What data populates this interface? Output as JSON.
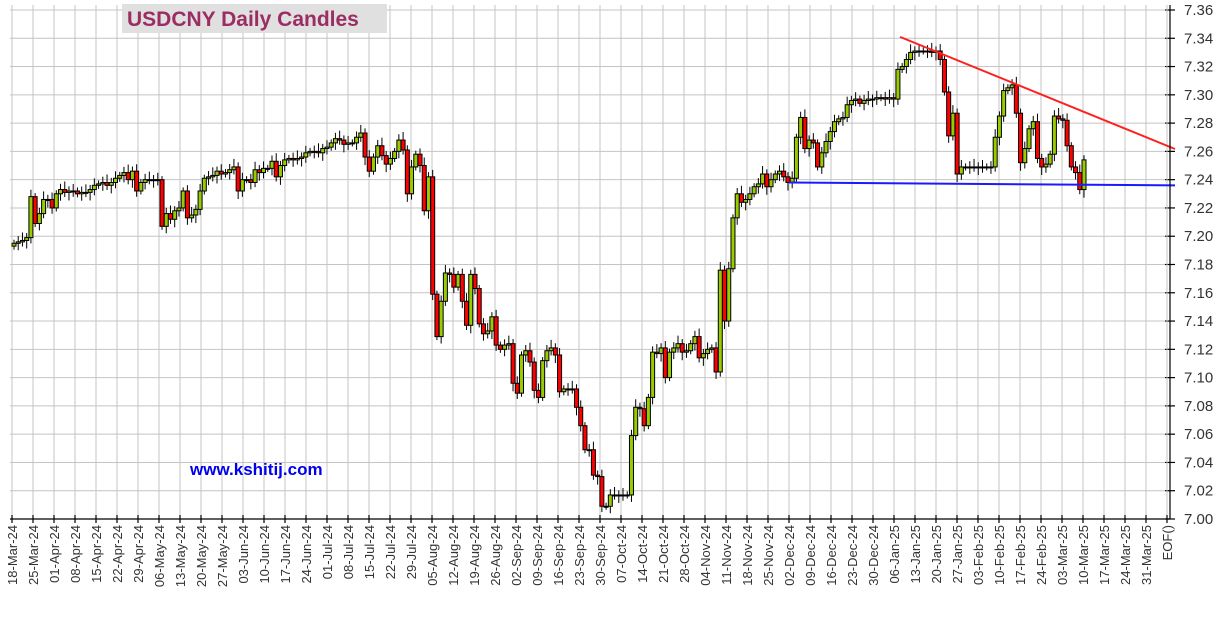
{
  "chart_data": {
    "type": "candlestick",
    "title": "USDCNY Daily Candles",
    "watermark": "www.kshitij.com",
    "ylim": [
      7.0,
      7.36
    ],
    "y_ticks": [
      "7.00",
      "7.02",
      "7.04",
      "7.06",
      "7.08",
      "7.10",
      "7.12",
      "7.14",
      "7.16",
      "7.18",
      "7.20",
      "7.22",
      "7.24",
      "7.26",
      "7.28",
      "7.30",
      "7.32",
      "7.34",
      "7.36"
    ],
    "x_ticks": [
      "18-Mar-24",
      "25-Mar-24",
      "01-Apr-24",
      "08-Apr-24",
      "15-Apr-24",
      "22-Apr-24",
      "29-Apr-24",
      "06-May-24",
      "13-May-24",
      "20-May-24",
      "27-May-24",
      "03-Jun-24",
      "10-Jun-24",
      "17-Jun-24",
      "24-Jun-24",
      "01-Jul-24",
      "08-Jul-24",
      "15-Jul-24",
      "22-Jul-24",
      "29-Jul-24",
      "05-Aug-24",
      "12-Aug-24",
      "19-Aug-24",
      "26-Aug-24",
      "02-Sep-24",
      "09-Sep-24",
      "16-Sep-24",
      "23-Sep-24",
      "30-Sep-24",
      "07-Oct-24",
      "14-Oct-24",
      "21-Oct-24",
      "28-Oct-24",
      "04-Nov-24",
      "11-Nov-24",
      "18-Nov-24",
      "25-Nov-24",
      "02-Dec-24",
      "09-Dec-24",
      "16-Dec-24",
      "23-Dec-24",
      "30-Dec-24",
      "06-Jan-25",
      "13-Jan-25",
      "20-Jan-25",
      "27-Jan-25",
      "03-Feb-25",
      "10-Feb-25",
      "17-Feb-25",
      "24-Feb-25",
      "03-Mar-25",
      "10-Mar-25",
      "17-Mar-25",
      "24-Mar-25",
      "31-Mar-25",
      "EOF()"
    ],
    "grid": true,
    "y_axis_side": "right",
    "first_open": 7.193,
    "closes_by_week": [
      {
        "week": "18-Mar-24",
        "closes": [
          7.195,
          7.196,
          7.197,
          7.199,
          7.228
        ]
      },
      {
        "week": "25-Mar-24",
        "closes": [
          7.209,
          7.216,
          7.226,
          7.226,
          7.22
        ]
      },
      {
        "week": "01-Apr-24",
        "closes": [
          7.23,
          7.233,
          7.231,
          7.232,
          7.232
        ]
      },
      {
        "week": "08-Apr-24",
        "closes": [
          7.23,
          7.231,
          7.231,
          7.233,
          7.236
        ]
      },
      {
        "week": "15-Apr-24",
        "closes": [
          7.237,
          7.238,
          7.236,
          7.238,
          7.241
        ]
      },
      {
        "week": "22-Apr-24",
        "closes": [
          7.243,
          7.245,
          7.24,
          7.246,
          7.232
        ]
      },
      {
        "week": "29-Apr-24",
        "closes": [
          7.238,
          7.24,
          7.24,
          7.24,
          7.24
        ]
      },
      {
        "week": "06-May-24",
        "closes": [
          7.207,
          7.216,
          7.212,
          7.218,
          7.22
        ]
      },
      {
        "week": "13-May-24",
        "closes": [
          7.232,
          7.213,
          7.215,
          7.219,
          7.232
        ]
      },
      {
        "week": "20-May-24",
        "closes": [
          7.241,
          7.242,
          7.243,
          7.246,
          7.244
        ]
      },
      {
        "week": "27-May-24",
        "closes": [
          7.245,
          7.247,
          7.249,
          7.232,
          7.24
        ]
      },
      {
        "week": "03-Jun-24",
        "closes": [
          7.24,
          7.238,
          7.247,
          7.245,
          7.248
        ]
      },
      {
        "week": "10-Jun-24",
        "closes": [
          7.248,
          7.253,
          7.242,
          7.25,
          7.254
        ]
      },
      {
        "week": "17-Jun-24",
        "closes": [
          7.255,
          7.254,
          7.255,
          7.256,
          7.259
        ]
      },
      {
        "week": "24-Jun-24",
        "closes": [
          7.26,
          7.26,
          7.259,
          7.262,
          7.263
        ]
      },
      {
        "week": "01-Jul-24",
        "closes": [
          7.266,
          7.269,
          7.268,
          7.265,
          7.266
        ]
      },
      {
        "week": "08-Jul-24",
        "closes": [
          7.266,
          7.27,
          7.273,
          7.256,
          7.246
        ]
      },
      {
        "week": "15-Jul-24",
        "closes": [
          7.256,
          7.264,
          7.257,
          7.251,
          7.255
        ]
      },
      {
        "week": "22-Jul-24",
        "closes": [
          7.26,
          7.268,
          7.261,
          7.23,
          7.249
        ]
      },
      {
        "week": "29-Jul-24",
        "closes": [
          7.258,
          7.25,
          7.218,
          7.242,
          7.159
        ]
      },
      {
        "week": "05-Aug-24",
        "closes": [
          7.129,
          7.154,
          7.174,
          7.173,
          7.164
        ]
      },
      {
        "week": "12-Aug-24",
        "closes": [
          7.173,
          7.154,
          7.137,
          7.173,
          7.163
        ]
      },
      {
        "week": "19-Aug-24",
        "closes": [
          7.138,
          7.131,
          7.133,
          7.143,
          7.123
        ]
      },
      {
        "week": "26-Aug-24",
        "closes": [
          7.12,
          7.123,
          7.124,
          7.096,
          7.089
        ]
      },
      {
        "week": "02-Sep-24",
        "closes": [
          7.116,
          7.119,
          7.111,
          7.091,
          7.086
        ]
      },
      {
        "week": "09-Sep-24",
        "closes": [
          7.112,
          7.119,
          7.121,
          7.116,
          7.09
        ]
      },
      {
        "week": "16-Sep-24",
        "closes": [
          7.092,
          7.092,
          7.092,
          7.079,
          7.066
        ]
      },
      {
        "week": "23-Sep-24",
        "closes": [
          7.049,
          7.049,
          7.031,
          7.03,
          7.009
        ]
      },
      {
        "week": "30-Sep-24",
        "closes": [
          7.009,
          7.017,
          7.017,
          7.017,
          7.017
        ]
      },
      {
        "week": "07-Oct-24",
        "closes": [
          7.017,
          7.059,
          7.079,
          7.078,
          7.066
        ]
      },
      {
        "week": "14-Oct-24",
        "closes": [
          7.086,
          7.118,
          7.117,
          7.121,
          7.1
        ]
      },
      {
        "week": "21-Oct-24",
        "closes": [
          7.118,
          7.121,
          7.124,
          7.118,
          7.119
        ]
      },
      {
        "week": "28-Oct-24",
        "closes": [
          7.124,
          7.129,
          7.114,
          7.117,
          7.12
        ]
      },
      {
        "week": "04-Nov-24",
        "closes": [
          7.121,
          7.104,
          7.176,
          7.14,
          7.177
        ]
      },
      {
        "week": "11-Nov-24",
        "closes": [
          7.213,
          7.23,
          7.224,
          7.226,
          7.23
        ]
      },
      {
        "week": "18-Nov-24",
        "closes": [
          7.235,
          7.237,
          7.244,
          7.235,
          7.24
        ]
      },
      {
        "week": "25-Nov-24",
        "closes": [
          7.244,
          7.246,
          7.242,
          7.238,
          7.241
        ]
      },
      {
        "week": "02-Dec-24",
        "closes": [
          7.27,
          7.284,
          7.262,
          7.268,
          7.266
        ]
      },
      {
        "week": "09-Dec-24",
        "closes": [
          7.249,
          7.259,
          7.267,
          7.274,
          7.281
        ]
      },
      {
        "week": "16-Dec-24",
        "closes": [
          7.283,
          7.284,
          7.293,
          7.296,
          7.297
        ]
      },
      {
        "week": "23-Dec-24",
        "closes": [
          7.294,
          7.296,
          7.297,
          7.297,
          7.298
        ]
      },
      {
        "week": "30-Dec-24",
        "closes": [
          7.298,
          7.297,
          7.298,
          7.297,
          7.318
        ]
      },
      {
        "week": "06-Jan-25",
        "closes": [
          7.32,
          7.325,
          7.33,
          7.331,
          7.331
        ]
      },
      {
        "week": "13-Jan-25",
        "closes": [
          7.331,
          7.331,
          7.33,
          7.331,
          7.325
        ]
      },
      {
        "week": "20-Jan-25",
        "closes": [
          7.302,
          7.271,
          7.287,
          7.244,
          7.249
        ]
      },
      {
        "week": "27-Jan-25",
        "closes": [
          7.249,
          7.249,
          7.249,
          7.249,
          7.249
        ]
      },
      {
        "week": "03-Feb-25",
        "closes": [
          7.249,
          7.249,
          7.27,
          7.285,
          7.303
        ]
      },
      {
        "week": "10-Feb-25",
        "closes": [
          7.305,
          7.307,
          7.287,
          7.252,
          7.262
        ]
      },
      {
        "week": "17-Feb-25",
        "closes": [
          7.276,
          7.281,
          7.255,
          7.249,
          7.251
        ]
      },
      {
        "week": "24-Feb-25",
        "closes": [
          7.258,
          7.285,
          7.283,
          7.282,
          7.264
        ]
      },
      {
        "week": "03-Mar-25",
        "closes": [
          7.249,
          7.245,
          7.233,
          7.254
        ]
      }
    ],
    "trendlines": [
      {
        "kind": "resistance",
        "color": "#ff2020",
        "start": {
          "date": "2025-01-08",
          "price": 7.341
        },
        "end": {
          "date": "2025-04-07",
          "price": 7.264
        }
      },
      {
        "kind": "support",
        "color": "#1a1aff",
        "start": {
          "date": "2024-12-02",
          "price": 7.238
        },
        "end": {
          "date": "2025-04-07",
          "price": 7.236
        }
      }
    ],
    "colors": {
      "up": "#99cc00",
      "down": "#ff0000",
      "title": "#9b2d62",
      "title_bg": "#e0e0e0",
      "watermark": "#0000ee",
      "grid": "#c4c4c4"
    }
  }
}
